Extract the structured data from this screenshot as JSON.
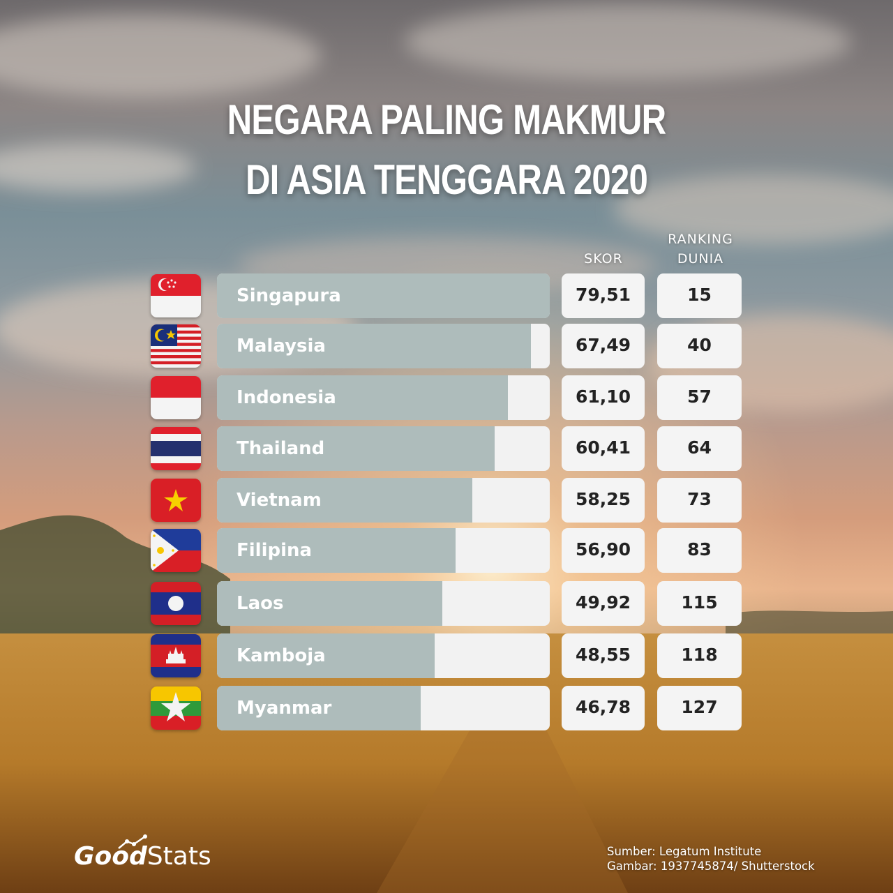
{
  "title_line1": "NEGARA PALING MAKMUR",
  "title_line2": "DI ASIA TENGGARA 2020",
  "headers": {
    "score": "SKOR",
    "rank_line1": "RANKING",
    "rank_line2": "DUNIA"
  },
  "chart_data": {
    "type": "bar",
    "orientation": "horizontal",
    "title": "NEGARA PALING MAKMUR DI ASIA TENGGARA 2020",
    "categories": [
      "Singapura",
      "Malaysia",
      "Indonesia",
      "Thailand",
      "Vietnam",
      "Filipina",
      "Laos",
      "Kamboja",
      "Myanmar"
    ],
    "series": [
      {
        "name": "SKOR",
        "values": [
          79.51,
          67.49,
          61.1,
          60.41,
          58.25,
          56.9,
          49.92,
          48.55,
          46.78
        ]
      }
    ],
    "score_labels": [
      "79,51",
      "67,49",
      "61,10",
      "60,41",
      "58,25",
      "56,90",
      "49,92",
      "48,55",
      "46,78"
    ],
    "rankings": [
      "15",
      "40",
      "57",
      "64",
      "73",
      "83",
      "115",
      "118",
      "127"
    ],
    "bar_fill_fraction": [
      1.0,
      0.943,
      0.875,
      0.835,
      0.767,
      0.717,
      0.677,
      0.655,
      0.612
    ]
  },
  "flags": [
    "singapore-flag-icon",
    "malaysia-flag-icon",
    "indonesia-flag-icon",
    "thailand-flag-icon",
    "vietnam-flag-icon",
    "philippines-flag-icon",
    "laos-flag-icon",
    "cambodia-flag-icon",
    "myanmar-flag-icon"
  ],
  "colors": {
    "bar_fill": "#aebcbb",
    "bar_track": "#f2f2f2",
    "box_bg": "#f4f4f4",
    "text_dark": "#222222"
  },
  "logo": {
    "good": "Good",
    "stats": "Stats"
  },
  "source": {
    "line1": "Sumber: Legatum Institute",
    "line2": "Gambar: 1937745874/ Shutterstock"
  }
}
